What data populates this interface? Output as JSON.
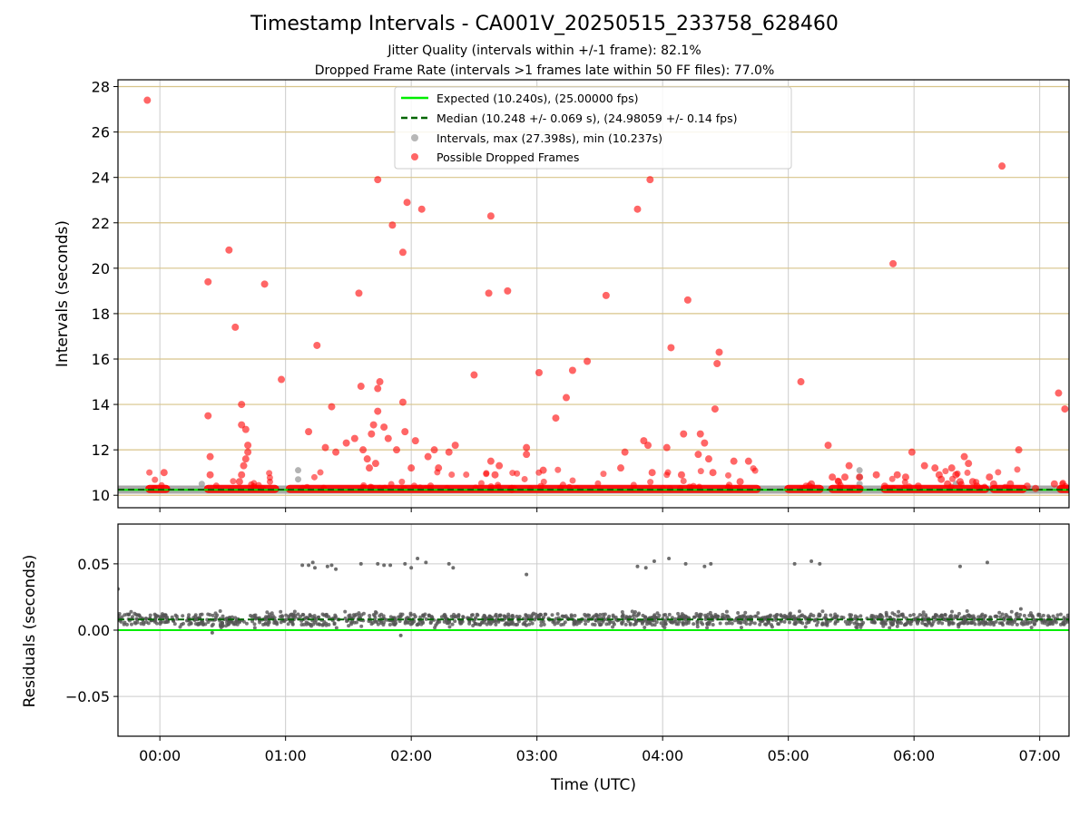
{
  "title": "Timestamp Intervals - CA001V_20250515_233758_628460",
  "subtitle_lines": [
    "Jitter Quality (intervals within +/-1 frame): 82.1%",
    "Dropped Frame Rate (intervals >1 frames late within 50 FF files): 77.0%"
  ],
  "colors": {
    "expected": "#00ee00",
    "median": "#006400",
    "intervals": "#999999",
    "dropped": "#ff0000",
    "hgrid_top": "#d8c48a",
    "grid": "#cccccc",
    "residual_points": "#555555"
  },
  "chart_data": [
    {
      "type": "scatter",
      "panel": "intervals",
      "ylabel": "Intervals (seconds)",
      "ylim": [
        9.45,
        28.3
      ],
      "xlim": [
        "-0:20",
        "07:14"
      ],
      "yticks": [
        10,
        12,
        14,
        16,
        18,
        20,
        22,
        24,
        26,
        28
      ],
      "xticks": [
        "00:00",
        "01:00",
        "02:00",
        "03:00",
        "04:00",
        "05:00",
        "06:00",
        "07:00"
      ],
      "grid": "horizontal",
      "legend_position": "top-center",
      "legend": [
        {
          "key": "expected",
          "label": "Expected (10.240s), (25.00000 fps)"
        },
        {
          "key": "median",
          "label": "Median (10.248 +/- 0.069 s), (24.98059 +/- 0.14 fps)"
        },
        {
          "key": "intervals",
          "label": "Intervals, max (27.398s), min (10.237s)"
        },
        {
          "key": "dropped",
          "label": "Possible Dropped Frames"
        }
      ],
      "expected_line": 10.24,
      "median_line": 10.248,
      "interval_series_time": [
        "-0:20",
        "07:14"
      ],
      "interval_series_value": 10.25,
      "dropped_frames": [
        [
          "-0:06",
          27.4
        ],
        [
          "0:02",
          11.0
        ],
        [
          "0:23",
          19.4
        ],
        [
          "0:23",
          13.5
        ],
        [
          "0:24",
          11.7
        ],
        [
          "0:24",
          10.9
        ],
        [
          "0:33",
          20.8
        ],
        [
          "0:36",
          17.4
        ],
        [
          "0:39",
          14.0
        ],
        [
          "0:39",
          13.1
        ],
        [
          "0:41",
          12.9
        ],
        [
          "0:42",
          12.2
        ],
        [
          "0:42",
          11.9
        ],
        [
          "0:41",
          11.6
        ],
        [
          "0:40",
          11.3
        ],
        [
          "0:39",
          10.9
        ],
        [
          "0:38",
          10.6
        ],
        [
          "0:50",
          19.3
        ],
        [
          "0:58",
          15.1
        ],
        [
          "1:11",
          12.8
        ],
        [
          "1:15",
          16.6
        ],
        [
          "1:19",
          12.1
        ],
        [
          "1:22",
          13.9
        ],
        [
          "1:24",
          11.9
        ],
        [
          "1:29",
          12.3
        ],
        [
          "1:33",
          12.5
        ],
        [
          "1:35",
          18.9
        ],
        [
          "1:36",
          14.8
        ],
        [
          "1:37",
          12.0
        ],
        [
          "1:39",
          11.6
        ],
        [
          "1:40",
          11.2
        ],
        [
          "1:41",
          12.7
        ],
        [
          "1:42",
          13.1
        ],
        [
          "1:43",
          11.4
        ],
        [
          "1:44",
          13.7
        ],
        [
          "1:44",
          14.7
        ],
        [
          "1:45",
          15.0
        ],
        [
          "1:44",
          23.9
        ],
        [
          "1:47",
          13.0
        ],
        [
          "1:49",
          12.5
        ],
        [
          "1:51",
          21.9
        ],
        [
          "1:53",
          12.0
        ],
        [
          "1:56",
          20.7
        ],
        [
          "1:56",
          14.1
        ],
        [
          "1:57",
          12.8
        ],
        [
          "1:58",
          22.9
        ],
        [
          "2:00",
          11.2
        ],
        [
          "2:02",
          12.4
        ],
        [
          "2:05",
          22.6
        ],
        [
          "2:08",
          11.7
        ],
        [
          "2:11",
          12.0
        ],
        [
          "2:13",
          11.2
        ],
        [
          "2:18",
          11.9
        ],
        [
          "2:21",
          12.2
        ],
        [
          "2:30",
          15.3
        ],
        [
          "2:37",
          18.9
        ],
        [
          "2:38",
          22.3
        ],
        [
          "2:38",
          11.5
        ],
        [
          "2:40",
          10.9
        ],
        [
          "2:42",
          11.3
        ],
        [
          "2:46",
          19.0
        ],
        [
          "2:55",
          12.1
        ],
        [
          "2:55",
          11.8
        ],
        [
          "3:01",
          15.4
        ],
        [
          "3:03",
          11.1
        ],
        [
          "3:09",
          13.4
        ],
        [
          "3:14",
          14.3
        ],
        [
          "3:17",
          15.5
        ],
        [
          "3:24",
          15.9
        ],
        [
          "3:33",
          18.8
        ],
        [
          "3:40",
          11.2
        ],
        [
          "3:42",
          11.9
        ],
        [
          "3:48",
          22.6
        ],
        [
          "3:51",
          12.4
        ],
        [
          "3:53",
          12.2
        ],
        [
          "3:54",
          23.9
        ],
        [
          "3:55",
          11.0
        ],
        [
          "4:02",
          12.1
        ],
        [
          "4:04",
          16.5
        ],
        [
          "4:09",
          10.9
        ],
        [
          "4:10",
          12.7
        ],
        [
          "4:12",
          18.6
        ],
        [
          "4:17",
          11.8
        ],
        [
          "4:18",
          12.7
        ],
        [
          "4:20",
          12.3
        ],
        [
          "4:22",
          11.6
        ],
        [
          "4:24",
          11.0
        ],
        [
          "4:25",
          13.8
        ],
        [
          "4:26",
          15.8
        ],
        [
          "4:27",
          16.3
        ],
        [
          "4:34",
          11.5
        ],
        [
          "4:37",
          10.6
        ],
        [
          "4:41",
          11.5
        ],
        [
          "5:06",
          15.0
        ],
        [
          "5:11",
          10.5
        ],
        [
          "5:19",
          12.2
        ],
        [
          "5:21",
          10.8
        ],
        [
          "5:24",
          10.6
        ],
        [
          "5:27",
          10.8
        ],
        [
          "5:29",
          11.3
        ],
        [
          "5:34",
          10.8
        ],
        [
          "5:42",
          10.9
        ],
        [
          "5:46",
          10.4
        ],
        [
          "5:50",
          20.2
        ],
        [
          "5:52",
          10.9
        ],
        [
          "5:56",
          10.8
        ],
        [
          "5:59",
          11.9
        ],
        [
          "6:02",
          10.4
        ],
        [
          "6:05",
          11.3
        ],
        [
          "6:10",
          11.2
        ],
        [
          "6:12",
          10.9
        ],
        [
          "6:13",
          10.7
        ],
        [
          "6:16",
          10.5
        ],
        [
          "6:18",
          11.2
        ],
        [
          "6:20",
          10.9
        ],
        [
          "6:22",
          10.6
        ],
        [
          "6:24",
          11.7
        ],
        [
          "6:26",
          11.4
        ],
        [
          "6:28",
          10.6
        ],
        [
          "6:30",
          10.4
        ],
        [
          "6:36",
          10.8
        ],
        [
          "6:38",
          10.5
        ],
        [
          "6:42",
          24.5
        ],
        [
          "6:46",
          10.5
        ],
        [
          "6:50",
          12.0
        ],
        [
          "6:54",
          10.4
        ],
        [
          "6:58",
          10.3
        ],
        [
          "7:07",
          10.5
        ],
        [
          "7:09",
          14.5
        ],
        [
          "7:12",
          13.8
        ]
      ],
      "gray_outliers": [
        [
          "0:20",
          10.5
        ],
        [
          "1:06",
          11.1
        ],
        [
          "1:06",
          10.7
        ],
        [
          "5:34",
          11.1
        ],
        [
          "5:34",
          10.8
        ],
        [
          "5:34",
          10.5
        ],
        [
          "6:20",
          10.5
        ]
      ],
      "dropped_runs": [
        [
          "-0:05",
          "0:03"
        ],
        [
          "0:23",
          "0:55"
        ],
        [
          "1:02",
          "2:48"
        ],
        [
          "2:48",
          "4:45"
        ],
        [
          "5:00",
          "5:15"
        ],
        [
          "5:21",
          "5:34"
        ],
        [
          "5:46",
          "6:34"
        ],
        [
          "6:38",
          "6:52"
        ],
        [
          "7:10",
          "7:14"
        ]
      ]
    },
    {
      "type": "scatter",
      "panel": "residuals",
      "ylabel": "Residuals (seconds)",
      "xlabel": "Time (UTC)",
      "ylim": [
        -0.08,
        0.08
      ],
      "yticks": [
        -0.05,
        0.0,
        0.05
      ],
      "ytick_labels": [
        "−0.05",
        "0.00",
        "0.05"
      ],
      "xticks": [
        "00:00",
        "01:00",
        "02:00",
        "03:00",
        "04:00",
        "05:00",
        "06:00",
        "07:00"
      ],
      "grid": "both",
      "zero_line": 0.0,
      "median_line": 0.008,
      "band_center": 0.008,
      "band_spread": 0.004,
      "band_span": [
        "-0:20",
        "07:14"
      ],
      "outliers": [
        [
          "-0:20",
          0.031
        ],
        [
          "0:25",
          -0.002
        ],
        [
          "1:08",
          0.049
        ],
        [
          "1:11",
          0.049
        ],
        [
          "1:13",
          0.051
        ],
        [
          "1:14",
          0.047
        ],
        [
          "1:20",
          0.048
        ],
        [
          "1:22",
          0.049
        ],
        [
          "1:24",
          0.046
        ],
        [
          "1:36",
          0.05
        ],
        [
          "1:44",
          0.05
        ],
        [
          "1:47",
          0.049
        ],
        [
          "1:50",
          0.049
        ],
        [
          "1:55",
          -0.004
        ],
        [
          "1:57",
          0.05
        ],
        [
          "2:00",
          0.047
        ],
        [
          "2:03",
          0.054
        ],
        [
          "2:07",
          0.051
        ],
        [
          "2:18",
          0.05
        ],
        [
          "2:20",
          0.047
        ],
        [
          "2:55",
          0.042
        ],
        [
          "3:48",
          0.048
        ],
        [
          "3:52",
          0.047
        ],
        [
          "3:56",
          0.052
        ],
        [
          "4:03",
          0.054
        ],
        [
          "4:11",
          0.05
        ],
        [
          "4:20",
          0.048
        ],
        [
          "4:23",
          0.05
        ],
        [
          "5:03",
          0.05
        ],
        [
          "5:11",
          0.052
        ],
        [
          "5:15",
          0.05
        ],
        [
          "6:22",
          0.048
        ],
        [
          "6:35",
          0.051
        ],
        [
          "6:51",
          0.016
        ]
      ]
    }
  ]
}
